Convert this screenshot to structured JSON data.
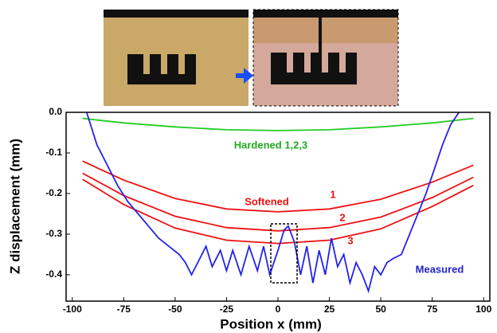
{
  "chart_data": {
    "type": "line",
    "x_label": "Position x (mm)",
    "y_label": "Z displacement (mm)",
    "annotations": [
      "Softened"
    ],
    "xlim": [
      -103,
      103
    ],
    "ylim": [
      -0.465,
      0
    ],
    "xticks": [
      -100,
      -75,
      -50,
      -25,
      0,
      25,
      50,
      75,
      100
    ],
    "yticks": [
      {
        "value": 0,
        "label": "0.0"
      },
      -0.1,
      -0.2,
      -0.3,
      -0.4
    ],
    "grid": false,
    "series": [
      {
        "name": "Hardened 1,2,3",
        "color": "#22cc22",
        "x": [
          -95,
          -75,
          -50,
          -25,
          0,
          25,
          50,
          75,
          95
        ],
        "values": [
          -0.015,
          -0.026,
          -0.036,
          -0.043,
          -0.045,
          -0.043,
          -0.036,
          -0.026,
          -0.015
        ]
      },
      {
        "name": "1",
        "color": "#ee1111",
        "x": [
          -95,
          -75,
          -50,
          -25,
          0,
          25,
          50,
          75,
          95
        ],
        "values": [
          -0.12,
          -0.167,
          -0.212,
          -0.238,
          -0.245,
          -0.238,
          -0.214,
          -0.172,
          -0.13
        ]
      },
      {
        "name": "2",
        "color": "#ee1111",
        "x": [
          -95,
          -75,
          -50,
          -25,
          0,
          25,
          50,
          75,
          95
        ],
        "values": [
          -0.15,
          -0.205,
          -0.256,
          -0.284,
          -0.292,
          -0.284,
          -0.258,
          -0.21,
          -0.16
        ]
      },
      {
        "name": "3",
        "color": "#ee1111",
        "x": [
          -95,
          -75,
          -50,
          -25,
          0,
          25,
          50,
          75,
          95
        ],
        "values": [
          -0.165,
          -0.227,
          -0.285,
          -0.315,
          -0.323,
          -0.315,
          -0.287,
          -0.232,
          -0.18
        ]
      },
      {
        "name": "Measured",
        "color": "#2222ee",
        "x": [
          -93,
          -88,
          -83,
          -78,
          -73,
          -68,
          -63,
          -58,
          -53,
          -48,
          -45,
          -42,
          -38,
          -35,
          -32,
          -28,
          -25,
          -22,
          -18,
          -14,
          -10,
          -7,
          -4,
          0,
          3,
          5,
          8,
          11,
          14,
          17,
          20,
          23,
          26,
          29,
          32,
          35,
          38,
          41,
          44,
          47,
          50,
          53,
          56,
          60,
          64,
          68,
          72,
          76,
          80,
          84,
          88
        ],
        "values": [
          0,
          -0.08,
          -0.13,
          -0.18,
          -0.22,
          -0.25,
          -0.28,
          -0.31,
          -0.33,
          -0.35,
          -0.37,
          -0.4,
          -0.36,
          -0.33,
          -0.38,
          -0.34,
          -0.39,
          -0.34,
          -0.4,
          -0.33,
          -0.39,
          -0.33,
          -0.4,
          -0.34,
          -0.29,
          -0.28,
          -0.32,
          -0.4,
          -0.33,
          -0.42,
          -0.34,
          -0.4,
          -0.31,
          -0.38,
          -0.35,
          -0.42,
          -0.37,
          -0.4,
          -0.44,
          -0.38,
          -0.4,
          -0.37,
          -0.36,
          -0.35,
          -0.3,
          -0.25,
          -0.2,
          -0.14,
          -0.08,
          -0.03,
          0
        ]
      }
    ]
  }
}
